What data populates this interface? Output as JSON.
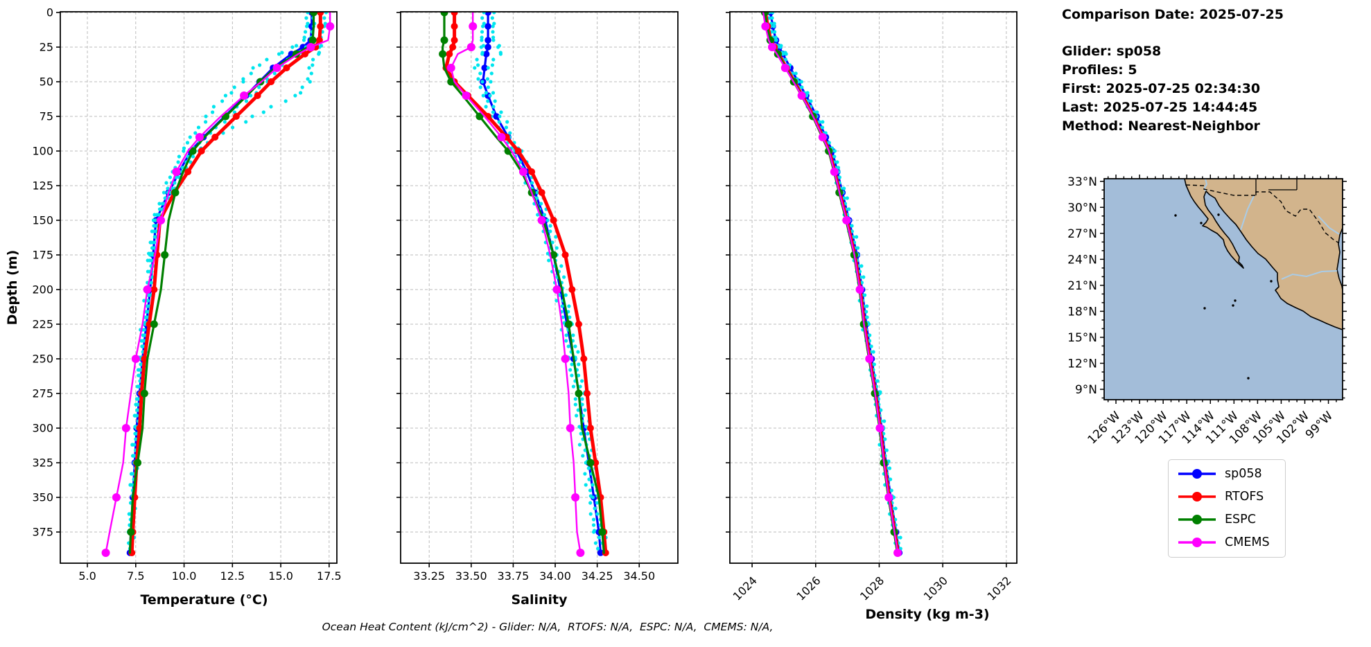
{
  "header": {
    "comparison_date": "Comparison Date: 2025-07-25",
    "glider": "Glider: sp058",
    "profiles": "Profiles: 5",
    "first": "First: 2025-07-25 02:34:30",
    "last": "Last: 2025-07-25 14:44:45",
    "method": "Method: Nearest-Neighbor"
  },
  "caption": {
    "text": "Ocean Heat Content (kJ/cm^2) - Glider: N/A,  RTOFS: N/A,  ESPC: N/A,  CMEMS: N/A,"
  },
  "legend": {
    "entries": [
      {
        "label": "sp058",
        "color": "#0000ff"
      },
      {
        "label": "RTOFS",
        "color": "#ff0000"
      },
      {
        "label": "ESPC",
        "color": "#008000"
      },
      {
        "label": "CMEMS",
        "color": "#ff00ff"
      }
    ]
  },
  "map": {
    "lat_tick_labels": [
      "33°N",
      "30°N",
      "27°N",
      "24°N",
      "21°N",
      "18°N",
      "15°N",
      "12°N",
      "9°N"
    ],
    "lat_tick_values": [
      33,
      30,
      27,
      24,
      21,
      18,
      15,
      12,
      9
    ],
    "lon_tick_labels": [
      "126°W",
      "123°W",
      "120°W",
      "117°W",
      "114°W",
      "111°W",
      "108°W",
      "105°W",
      "102°W",
      "99°W"
    ],
    "lon_tick_values": [
      126,
      123,
      120,
      117,
      114,
      111,
      108,
      105,
      102,
      99
    ],
    "lon_range_w": [
      127.5,
      97.2
    ],
    "lat_range": [
      7.8,
      33.3
    ],
    "land_color": "#d2b48c",
    "ocean_color": "#a3bdd9",
    "river_color": "#a9cce8"
  },
  "chart_data": [
    {
      "type": "line",
      "xlabel": "Temperature (°C)",
      "ylabel": "Depth (m)",
      "xlim": [
        3.6,
        17.9
      ],
      "ylim": [
        -0.5,
        397.5
      ],
      "xticks": [
        5.0,
        7.5,
        10.0,
        12.5,
        15.0,
        17.5
      ],
      "xtick_labels": [
        "5.0",
        "7.5",
        "10.0",
        "12.5",
        "15.0",
        "17.5"
      ],
      "xtick_rotation": 0,
      "yticks": [
        0,
        25,
        50,
        75,
        100,
        125,
        150,
        175,
        200,
        225,
        250,
        275,
        300,
        325,
        350,
        375
      ],
      "grid": true,
      "depths": [
        0,
        10,
        20,
        25,
        30,
        40,
        50,
        60,
        75,
        90,
        100,
        115,
        130,
        150,
        175,
        200,
        225,
        250,
        275,
        300,
        325,
        350,
        375,
        390
      ],
      "series": [
        {
          "name": "sp058",
          "color": "#0000ff",
          "style": "line",
          "lw": 3.2,
          "marker_r": 4.8,
          "marker_every": 1,
          "marker_offset": 0,
          "values": [
            16.6,
            16.6,
            16.55,
            16.15,
            15.55,
            14.6,
            13.9,
            13.2,
            12.1,
            11.0,
            10.35,
            9.75,
            9.2,
            8.55,
            8.4,
            8.25,
            8.05,
            7.85,
            7.7,
            7.55,
            7.45,
            7.35,
            7.25,
            7.2
          ]
        },
        {
          "name": "sp058-obs-1",
          "color": "#00e5ee",
          "style": "dots",
          "dot_r": 2.6,
          "jitter": 0.09,
          "values": [
            17.3,
            17.25,
            17.1,
            17.0,
            16.85,
            16.6,
            16.4,
            15.8,
            13.6,
            11.6,
            10.7,
            9.9,
            9.35,
            8.65,
            8.45,
            8.3,
            8.1,
            7.9,
            7.75,
            7.6,
            7.5,
            7.4,
            7.3,
            7.25
          ]
        },
        {
          "name": "sp058-obs-2",
          "color": "#00e5ee",
          "style": "dots",
          "dot_r": 2.6,
          "jitter": 0.09,
          "values": [
            16.35,
            16.35,
            16.25,
            15.6,
            14.8,
            13.7,
            12.95,
            12.2,
            11.2,
            10.4,
            9.9,
            9.4,
            9.0,
            8.45,
            8.25,
            8.1,
            7.9,
            7.75,
            7.6,
            7.5,
            7.4,
            7.3,
            7.2,
            7.15
          ]
        },
        {
          "name": "sp058-obs-3",
          "color": "#00e5ee",
          "style": "dots",
          "dot_r": 2.6,
          "jitter": 0.09,
          "values": [
            16.7,
            16.7,
            16.6,
            16.3,
            15.8,
            14.9,
            14.2,
            13.5,
            12.3,
            11.1,
            10.4,
            9.75,
            9.2,
            8.55,
            8.35,
            8.2,
            8.0,
            7.8,
            7.65,
            7.5,
            7.4,
            7.3,
            7.2,
            7.15
          ]
        },
        {
          "name": "RTOFS",
          "color": "#ff0000",
          "style": "line",
          "lw": 5,
          "marker_r": 5,
          "marker_every": 1,
          "marker_offset": 0,
          "values": [
            17.05,
            17.05,
            17.0,
            16.8,
            16.25,
            15.3,
            14.5,
            13.8,
            12.7,
            11.6,
            10.9,
            10.2,
            9.5,
            8.75,
            8.6,
            8.45,
            8.2,
            7.95,
            7.8,
            7.7,
            7.55,
            7.45,
            7.35,
            7.3
          ]
        },
        {
          "name": "ESPC",
          "color": "#008000",
          "style": "line",
          "lw": 3.2,
          "marker_r": 5.5,
          "marker_every": 2,
          "marker_offset": 0,
          "values": [
            16.7,
            16.7,
            16.65,
            16.4,
            15.8,
            14.7,
            13.95,
            13.25,
            12.15,
            11.05,
            10.45,
            9.95,
            9.55,
            9.2,
            9.0,
            8.8,
            8.45,
            8.1,
            7.95,
            7.85,
            7.6,
            7.35,
            7.25,
            7.2
          ]
        },
        {
          "name": "CMEMS",
          "color": "#ff00ff",
          "style": "line",
          "lw": 2.4,
          "marker_r": 6,
          "marker_every": 2,
          "marker_offset": 1,
          "values": [
            17.55,
            17.55,
            17.45,
            16.55,
            15.9,
            14.8,
            14.0,
            13.1,
            11.9,
            10.8,
            10.2,
            9.6,
            9.2,
            8.8,
            8.5,
            8.1,
            7.85,
            7.5,
            7.25,
            7.0,
            6.85,
            6.5,
            6.15,
            5.95
          ]
        }
      ]
    },
    {
      "type": "line",
      "xlabel": "Salinity",
      "ylabel": "",
      "xlim": [
        33.08,
        34.73
      ],
      "ylim": [
        -0.5,
        397.5
      ],
      "xticks": [
        33.25,
        33.5,
        33.75,
        34.0,
        34.25,
        34.5
      ],
      "xtick_labels": [
        "33.25",
        "33.50",
        "33.75",
        "34.00",
        "34.25",
        "34.50"
      ],
      "xtick_rotation": 0,
      "yticks": [
        0,
        25,
        50,
        75,
        100,
        125,
        150,
        175,
        200,
        225,
        250,
        275,
        300,
        325,
        350,
        375
      ],
      "grid": true,
      "depths": [
        0,
        10,
        20,
        25,
        30,
        40,
        50,
        60,
        75,
        90,
        100,
        115,
        130,
        150,
        175,
        200,
        225,
        250,
        275,
        300,
        325,
        350,
        375,
        390
      ],
      "series": [
        {
          "name": "sp058",
          "color": "#0000ff",
          "style": "line",
          "lw": 3.2,
          "marker_r": 4.8,
          "marker_every": 1,
          "marker_offset": 0,
          "values": [
            33.6,
            33.6,
            33.6,
            33.6,
            33.59,
            33.58,
            33.57,
            33.6,
            33.65,
            33.72,
            33.77,
            33.83,
            33.88,
            33.94,
            33.99,
            34.03,
            34.07,
            34.11,
            34.14,
            34.17,
            34.2,
            34.23,
            34.26,
            34.27
          ]
        },
        {
          "name": "sp058-obs-1",
          "color": "#00e5ee",
          "style": "dots",
          "dot_r": 2.6,
          "jitter": 0.013,
          "values": [
            33.63,
            33.63,
            33.64,
            33.66,
            33.66,
            33.62,
            33.6,
            33.62,
            33.68,
            33.74,
            33.79,
            33.85,
            33.9,
            33.96,
            34.01,
            34.05,
            34.09,
            34.13,
            34.16,
            34.19,
            34.22,
            34.25,
            34.28,
            34.29
          ]
        },
        {
          "name": "sp058-obs-2",
          "color": "#00e5ee",
          "style": "dots",
          "dot_r": 2.6,
          "jitter": 0.013,
          "values": [
            33.57,
            33.57,
            33.57,
            33.56,
            33.55,
            33.54,
            33.55,
            33.58,
            33.63,
            33.7,
            33.75,
            33.81,
            33.86,
            33.92,
            33.97,
            34.01,
            34.05,
            34.09,
            34.12,
            34.15,
            34.18,
            34.21,
            34.24,
            34.25
          ]
        },
        {
          "name": "RTOFS",
          "color": "#ff0000",
          "style": "line",
          "lw": 5,
          "marker_r": 5,
          "marker_every": 1,
          "marker_offset": 0,
          "values": [
            33.4,
            33.4,
            33.4,
            33.39,
            33.37,
            33.35,
            33.4,
            33.48,
            33.6,
            33.71,
            33.78,
            33.86,
            33.92,
            33.99,
            34.06,
            34.1,
            34.14,
            34.17,
            34.19,
            34.21,
            34.24,
            34.27,
            34.29,
            34.3
          ]
        },
        {
          "name": "ESPC",
          "color": "#008000",
          "style": "line",
          "lw": 3.2,
          "marker_r": 5.5,
          "marker_every": 2,
          "marker_offset": 0,
          "values": [
            33.34,
            33.34,
            33.34,
            33.33,
            33.33,
            33.34,
            33.38,
            33.45,
            33.55,
            33.65,
            33.72,
            33.8,
            33.86,
            33.93,
            33.99,
            34.04,
            34.08,
            34.11,
            34.14,
            34.16,
            34.21,
            34.26,
            34.28,
            34.29
          ]
        },
        {
          "name": "CMEMS",
          "color": "#ff00ff",
          "style": "line",
          "lw": 2.4,
          "marker_r": 6,
          "marker_every": 2,
          "marker_offset": 1,
          "values": [
            33.51,
            33.51,
            33.51,
            33.5,
            33.42,
            33.38,
            33.4,
            33.47,
            33.58,
            33.68,
            33.74,
            33.81,
            33.86,
            33.92,
            33.97,
            34.01,
            34.04,
            34.06,
            34.08,
            34.09,
            34.11,
            34.12,
            34.13,
            34.15
          ]
        }
      ]
    },
    {
      "type": "line",
      "xlabel": "Density (kg m-3)",
      "ylabel": "",
      "xlim": [
        1023.3,
        1032.33
      ],
      "ylim": [
        -0.5,
        397.5
      ],
      "xticks": [
        1024,
        1026,
        1028,
        1030,
        1032
      ],
      "xtick_labels": [
        "1024",
        "1026",
        "1028",
        "1030",
        "1032"
      ],
      "xtick_rotation": 45,
      "yticks": [
        0,
        25,
        50,
        75,
        100,
        125,
        150,
        175,
        200,
        225,
        250,
        275,
        300,
        325,
        350,
        375
      ],
      "grid": true,
      "depths": [
        0,
        10,
        20,
        25,
        30,
        40,
        50,
        60,
        75,
        90,
        100,
        115,
        130,
        150,
        175,
        200,
        225,
        250,
        275,
        300,
        325,
        350,
        375,
        390
      ],
      "series": [
        {
          "name": "sp058",
          "color": "#0000ff",
          "style": "line",
          "lw": 3.2,
          "marker_r": 4.8,
          "marker_every": 1,
          "marker_offset": 0,
          "values": [
            1024.58,
            1024.65,
            1024.75,
            1024.85,
            1024.97,
            1025.2,
            1025.45,
            1025.7,
            1026.03,
            1026.32,
            1026.52,
            1026.68,
            1026.84,
            1027.05,
            1027.3,
            1027.46,
            1027.59,
            1027.76,
            1027.93,
            1028.08,
            1028.21,
            1028.36,
            1028.53,
            1028.63
          ]
        },
        {
          "name": "sp058-obs-1",
          "color": "#00e5ee",
          "style": "dots",
          "dot_r": 2.6,
          "jitter": 0.05,
          "values": [
            1024.62,
            1024.69,
            1024.79,
            1024.89,
            1025.01,
            1025.24,
            1025.49,
            1025.74,
            1026.07,
            1026.36,
            1026.56,
            1026.72,
            1026.88,
            1027.09,
            1027.34,
            1027.5,
            1027.63,
            1027.8,
            1027.97,
            1028.12,
            1028.25,
            1028.4,
            1028.57,
            1028.67
          ]
        },
        {
          "name": "sp058-obs-2",
          "color": "#00e5ee",
          "style": "dots",
          "dot_r": 2.6,
          "jitter": 0.05,
          "values": [
            1024.52,
            1024.59,
            1024.69,
            1024.79,
            1024.91,
            1025.14,
            1025.39,
            1025.64,
            1025.97,
            1026.26,
            1026.46,
            1026.62,
            1026.78,
            1026.99,
            1027.24,
            1027.4,
            1027.53,
            1027.7,
            1027.87,
            1028.02,
            1028.15,
            1028.3,
            1028.47,
            1028.57
          ]
        },
        {
          "name": "RTOFS",
          "color": "#ff0000",
          "style": "line",
          "lw": 5,
          "marker_r": 5,
          "marker_every": 1,
          "marker_offset": 0,
          "values": [
            1024.42,
            1024.49,
            1024.59,
            1024.7,
            1024.83,
            1025.08,
            1025.33,
            1025.58,
            1025.93,
            1026.23,
            1026.43,
            1026.6,
            1026.76,
            1026.98,
            1027.23,
            1027.4,
            1027.53,
            1027.7,
            1027.88,
            1028.03,
            1028.16,
            1028.31,
            1028.49,
            1028.59
          ]
        },
        {
          "name": "ESPC",
          "color": "#008000",
          "style": "line",
          "lw": 3.2,
          "marker_r": 5.5,
          "marker_every": 2,
          "marker_offset": 0,
          "values": [
            1024.4,
            1024.47,
            1024.57,
            1024.68,
            1024.81,
            1025.06,
            1025.31,
            1025.56,
            1025.91,
            1026.21,
            1026.41,
            1026.58,
            1026.74,
            1026.96,
            1027.21,
            1027.38,
            1027.51,
            1027.68,
            1027.86,
            1028.01,
            1028.14,
            1028.29,
            1028.47,
            1028.57
          ]
        },
        {
          "name": "CMEMS",
          "color": "#ff00ff",
          "style": "line",
          "lw": 2.4,
          "marker_r": 6,
          "marker_every": 2,
          "marker_offset": 1,
          "values": [
            1024.35,
            1024.42,
            1024.52,
            1024.63,
            1024.78,
            1025.04,
            1025.3,
            1025.56,
            1025.92,
            1026.22,
            1026.42,
            1026.59,
            1026.75,
            1026.97,
            1027.22,
            1027.39,
            1027.52,
            1027.69,
            1027.87,
            1028.02,
            1028.15,
            1028.3,
            1028.48,
            1028.58
          ]
        }
      ]
    }
  ]
}
